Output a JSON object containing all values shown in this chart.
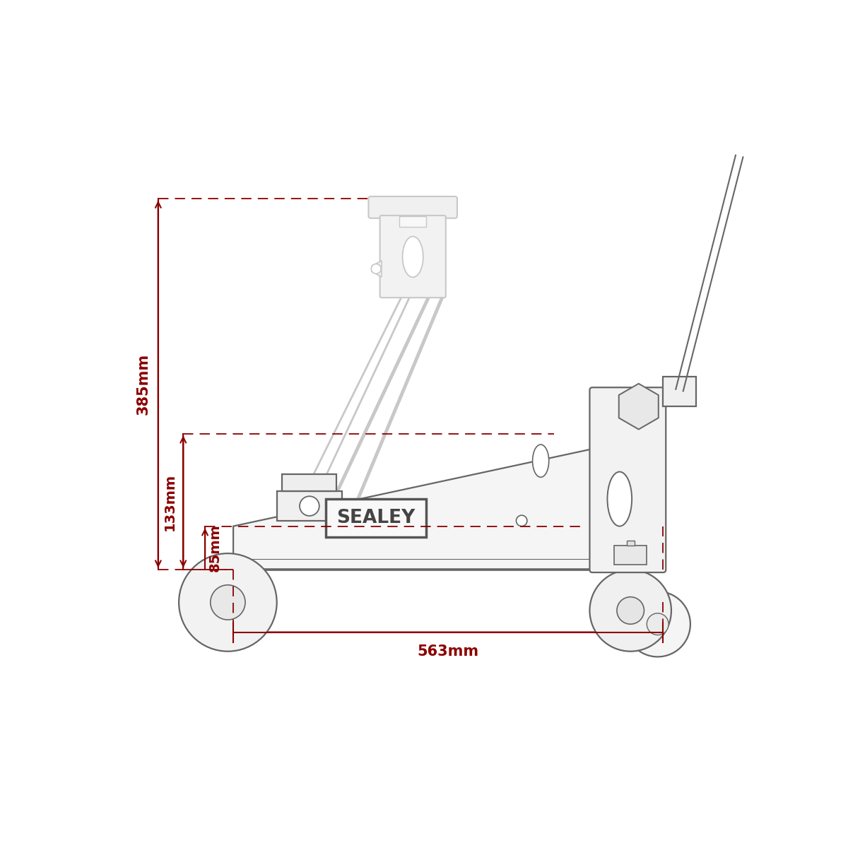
{
  "bg_color": "#ffffff",
  "lc": "#aaaaaa",
  "lc_dark": "#666666",
  "lc_ghost": "#c8c8c8",
  "dc": "#8b0000",
  "dim_385": "385mm",
  "dim_133": "133mm",
  "dim_85": "85mm",
  "dim_563": "563mm",
  "fig_width": 12.0,
  "fig_height": 12.0,
  "dpi": 100,
  "lw_jack": 1.6,
  "lw_ghost": 1.4,
  "lw_dim": 1.5
}
